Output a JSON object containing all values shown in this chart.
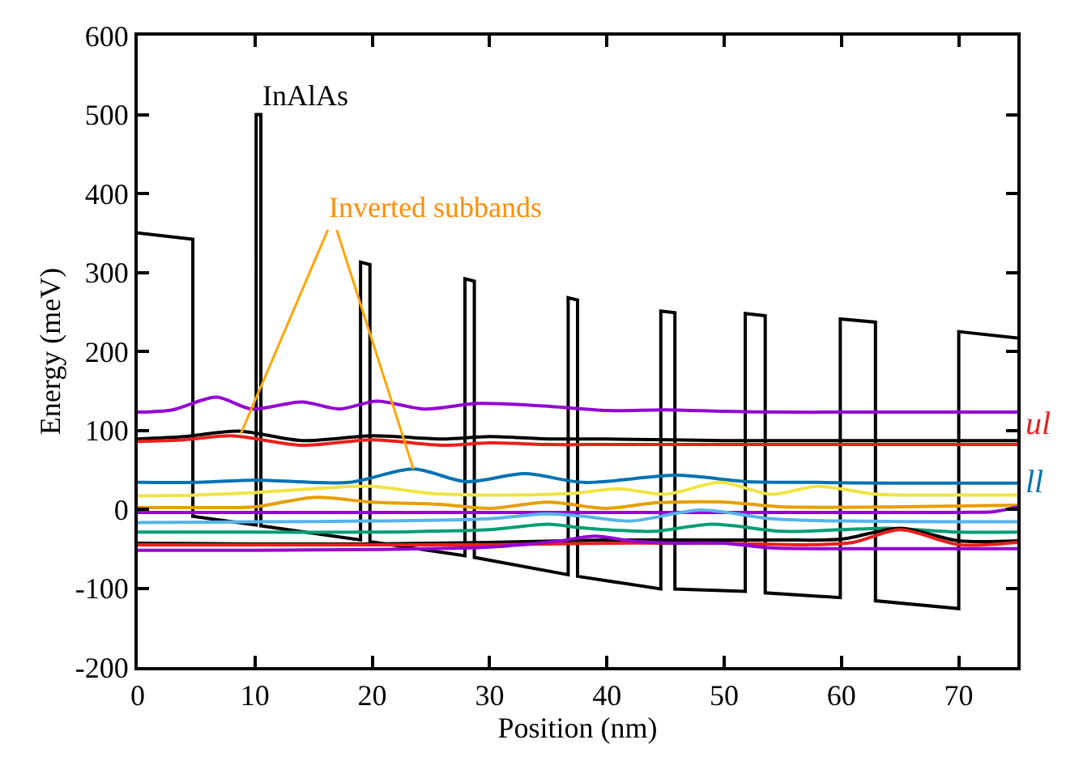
{
  "chart_data": {
    "type": "line",
    "xlabel": "Position (nm)",
    "ylabel": "Energy (meV)",
    "xlim": [
      0,
      75
    ],
    "ylim": [
      -200,
      600
    ],
    "xticks": [
      0,
      10,
      20,
      30,
      40,
      50,
      60,
      70
    ],
    "yticks": [
      -200,
      -100,
      0,
      100,
      200,
      300,
      400,
      500,
      600
    ],
    "legend": false,
    "marker": "none",
    "line_style": "solid",
    "series": [
      {
        "color": "#000000",
        "x": [
          0,
          4.7,
          4.7,
          10.1,
          10.1,
          10.5,
          10.5,
          19.0,
          19.0,
          19.8,
          19.8,
          27.9,
          27.9,
          28.7,
          28.7,
          36.7,
          36.7,
          37.5,
          37.5,
          44.6,
          44.6,
          45.8,
          45.8,
          51.8,
          51.8,
          53.5,
          53.5,
          59.9,
          59.9,
          62.9,
          62.9,
          70.0,
          70.0,
          75
        ],
        "values": [
          350,
          342,
          -9,
          -20,
          500,
          500,
          -21,
          -39,
          313,
          310,
          -41,
          -59,
          292,
          289,
          -61,
          -83,
          268,
          265,
          -85,
          -101,
          251,
          249,
          -101,
          -104,
          248,
          245,
          -106,
          -112,
          241,
          237,
          -116,
          -126,
          225,
          217
        ]
      },
      {
        "color": "#9400d3",
        "x": [
          0,
          3,
          6.7,
          9.7,
          14,
          17.2,
          20.4,
          24.4,
          29,
          34.4,
          40,
          45,
          50,
          55,
          60,
          65,
          70,
          75
        ],
        "values": [
          123,
          126,
          142,
          127,
          136,
          127,
          137,
          127,
          134,
          131,
          125,
          126,
          124,
          123,
          123,
          123,
          123,
          123
        ]
      },
      {
        "color": "#000000",
        "x": [
          0,
          4,
          8.6,
          14,
          20,
          26,
          30,
          35,
          40,
          50,
          60,
          70,
          75
        ],
        "values": [
          89,
          92,
          99,
          87,
          93,
          89,
          92,
          89,
          89,
          87,
          87,
          87,
          87
        ]
      },
      {
        "name": "ul",
        "color": "#e8201c",
        "x": [
          0,
          4,
          8,
          14,
          20,
          26,
          30,
          35,
          40,
          50,
          60,
          70,
          75
        ],
        "values": [
          86,
          88,
          93,
          81,
          88,
          81,
          84,
          82,
          82,
          82,
          82,
          82,
          82
        ]
      },
      {
        "name": "ll",
        "color": "#0072b2",
        "x": [
          0,
          5,
          10,
          18,
          23.5,
          28,
          33,
          38,
          46,
          52,
          58,
          64,
          70,
          75
        ],
        "values": [
          34,
          34,
          37,
          34,
          51,
          35,
          45,
          34,
          43,
          35,
          34,
          33,
          33,
          33
        ]
      },
      {
        "color": "#f0e442",
        "x": [
          0,
          5,
          10,
          15,
          20,
          25,
          30,
          37,
          41,
          45,
          49.7,
          54,
          58,
          63,
          70,
          75
        ],
        "values": [
          17,
          18,
          21,
          26,
          29,
          20,
          18,
          20,
          26,
          19,
          34,
          19,
          29,
          19,
          18,
          18
        ]
      },
      {
        "color": "#e69f00",
        "x": [
          0,
          5,
          10,
          15,
          20,
          26,
          30,
          35,
          40,
          44,
          50,
          55,
          65,
          75
        ],
        "values": [
          2,
          2,
          3,
          15,
          9,
          6,
          1,
          9,
          1,
          8,
          9,
          3,
          3,
          5
        ]
      },
      {
        "color": "#9400d3",
        "x": [
          0,
          10,
          20,
          30,
          40,
          50,
          60,
          70,
          73,
          75
        ],
        "values": [
          -4,
          -4,
          -4,
          -4,
          -4,
          -4,
          -4,
          -4,
          -3,
          3
        ]
      },
      {
        "color": "#56b4e9",
        "x": [
          0,
          10,
          20,
          30,
          34.8,
          38,
          42,
          48,
          54,
          60,
          70,
          75
        ],
        "values": [
          -17,
          -16,
          -15,
          -12,
          -6,
          -9,
          -15,
          -1,
          -12,
          -15,
          -16,
          -16
        ]
      },
      {
        "color": "#009e73",
        "x": [
          0,
          10,
          20,
          30,
          35,
          37.5,
          40,
          44,
          49,
          55,
          60,
          64,
          70,
          75
        ],
        "values": [
          -29,
          -29,
          -29,
          -26,
          -19,
          -23,
          -26,
          -28,
          -19,
          -28,
          -26,
          -24,
          -29,
          -29
        ]
      },
      {
        "color": "#000000",
        "x": [
          0,
          10,
          20,
          30,
          40,
          45,
          50,
          55,
          60,
          65,
          70,
          75
        ],
        "values": [
          -43,
          -44,
          -44,
          -42,
          -39,
          -39,
          -39,
          -39,
          -38,
          -24,
          -40,
          -40
        ]
      },
      {
        "color": "#e8201c",
        "x": [
          0,
          10,
          20,
          30,
          40,
          45,
          50,
          57,
          61,
          65,
          70,
          75
        ],
        "values": [
          -45,
          -45,
          -45,
          -45,
          -43,
          -43,
          -43,
          -45,
          -42,
          -26,
          -45,
          -42
        ]
      },
      {
        "color": "#9400d3",
        "x": [
          0,
          10,
          20,
          30,
          36,
          39,
          42,
          46,
          50,
          54,
          60,
          70,
          75
        ],
        "values": [
          -52,
          -52,
          -51,
          -48,
          -40,
          -34,
          -40,
          -43,
          -43,
          -49,
          -50,
          -50,
          -50
        ]
      }
    ],
    "annotations": [
      {
        "text": "InAlAs",
        "x": 10.3,
        "y": 500
      },
      {
        "text": "Inverted subbands",
        "x": 8.8,
        "y": 96
      }
    ]
  }
}
